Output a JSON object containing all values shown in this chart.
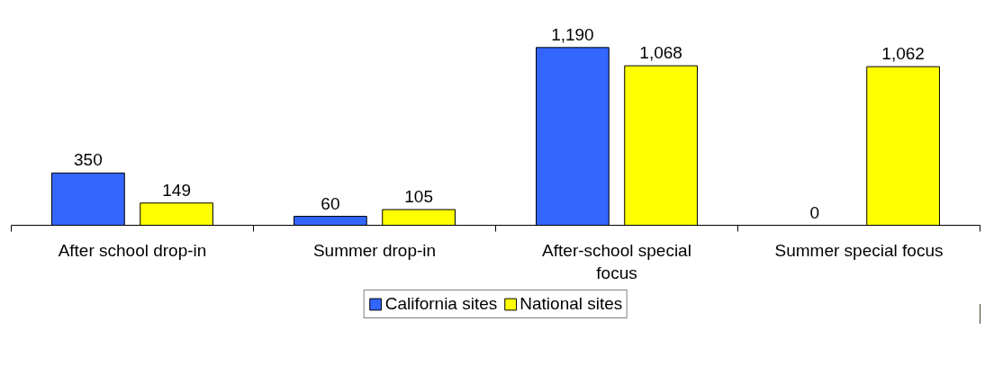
{
  "chart_data": {
    "type": "bar",
    "categories": [
      "After school drop-in",
      "Summer drop-in",
      "After-school special focus",
      "Summer special focus"
    ],
    "series": [
      {
        "name": "California sites",
        "color": "#3366ff",
        "values": [
          350,
          60,
          1190,
          0
        ],
        "value_labels": [
          "350",
          "60",
          "1,190",
          "0"
        ]
      },
      {
        "name": "National sites",
        "color": "#ffff00",
        "values": [
          149,
          105,
          1068,
          1062
        ],
        "value_labels": [
          "149",
          "105",
          "1,068",
          "1,062"
        ]
      }
    ],
    "legend": "bottom"
  }
}
